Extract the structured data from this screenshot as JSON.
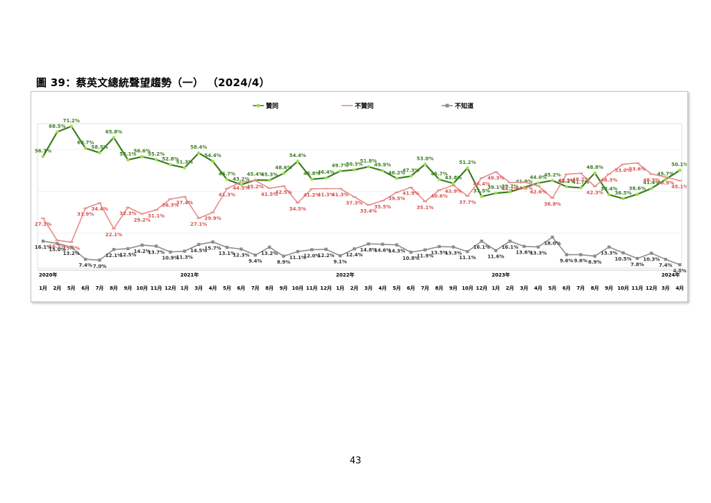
{
  "figure_title": "圖 39：蔡英文總統聲望趨勢（一）  （2024/4）",
  "page_number": "43",
  "colors": {
    "approve": "#3a7d1e",
    "approve_marker": "#9be04a",
    "disapprove": "#e58a8a",
    "disapprove_text": "#d9534f",
    "unknown": "#8c8c8c",
    "unknown_text": "#333333"
  },
  "chart_data": {
    "type": "line",
    "title": "",
    "xlabel": "",
    "ylabel": "",
    "ylim": [
      0,
      80
    ],
    "grid": true,
    "legend_position": "top-center",
    "x": [
      "1月",
      "2月",
      "5月",
      "6月",
      "7月",
      "8月",
      "9月",
      "10月",
      "11月",
      "12月",
      "1月",
      "3月",
      "4月",
      "5月",
      "6月",
      "7月",
      "8月",
      "9月",
      "10月",
      "11月",
      "12月",
      "1月",
      "2月",
      "3月",
      "4月",
      "5月",
      "6月",
      "7月",
      "8月",
      "9月",
      "10月",
      "12月",
      "1月",
      "2月",
      "3月",
      "4月",
      "5月",
      "6月",
      "7月",
      "8月",
      "9月",
      "10月",
      "11月",
      "12月",
      "3月",
      "4月"
    ],
    "year_labels": [
      {
        "label": "2020年",
        "index": 0
      },
      {
        "label": "2021年",
        "index": 10
      },
      {
        "label": "2022年",
        "index": 21
      },
      {
        "label": "2023年",
        "index": 32
      },
      {
        "label": "2024年",
        "index": 44
      }
    ],
    "series": [
      {
        "name": "贊同",
        "values": [
          56.7,
          68.5,
          71.2,
          60.7,
          58.5,
          65.8,
          55.1,
          56.6,
          55.2,
          52.8,
          51.3,
          58.4,
          54.4,
          45.7,
          43.2,
          45.4,
          45.3,
          48.6,
          54.4,
          45.8,
          46.4,
          49.7,
          50.3,
          51.8,
          49.9,
          46.2,
          47.3,
          53.0,
          45.7,
          43.8,
          51.2,
          37.5,
          39.1,
          39.7,
          41.9,
          44.0,
          45.2,
          42.2,
          41.7,
          48.8,
          38.4,
          36.5,
          38.6,
          41.4,
          45.7,
          50.1
        ]
      },
      {
        "name": "不贊同",
        "values": [
          27.1,
          16.5,
          15.6,
          31.9,
          34.4,
          22.1,
          32.3,
          29.2,
          31.1,
          36.3,
          37.4,
          27.1,
          29.9,
          41.3,
          44.5,
          45.2,
          41.5,
          42.5,
          34.5,
          41.2,
          41.3,
          41.3,
          37.3,
          33.4,
          35.5,
          39.5,
          41.9,
          35.1,
          40.6,
          42.9,
          37.7,
          46.4,
          49.3,
          44.2,
          44.5,
          42.6,
          36.8,
          48.2,
          48.7,
          42.3,
          48.3,
          53.0,
          53.6,
          48.3,
          46.9,
          45.1
        ]
      },
      {
        "name": "不知道",
        "values": [
          16.1,
          15.0,
          13.2,
          7.4,
          7.0,
          12.1,
          12.5,
          14.2,
          13.7,
          10.9,
          11.3,
          14.5,
          15.7,
          13.1,
          12.3,
          9.4,
          13.2,
          8.9,
          11.1,
          12.0,
          12.2,
          9.1,
          12.4,
          14.8,
          14.6,
          14.3,
          10.8,
          11.9,
          13.5,
          13.3,
          11.1,
          16.1,
          11.6,
          16.1,
          13.6,
          13.3,
          18.0,
          9.6,
          9.6,
          8.9,
          13.3,
          10.5,
          7.8,
          10.3,
          7.4,
          4.8
        ]
      }
    ]
  }
}
